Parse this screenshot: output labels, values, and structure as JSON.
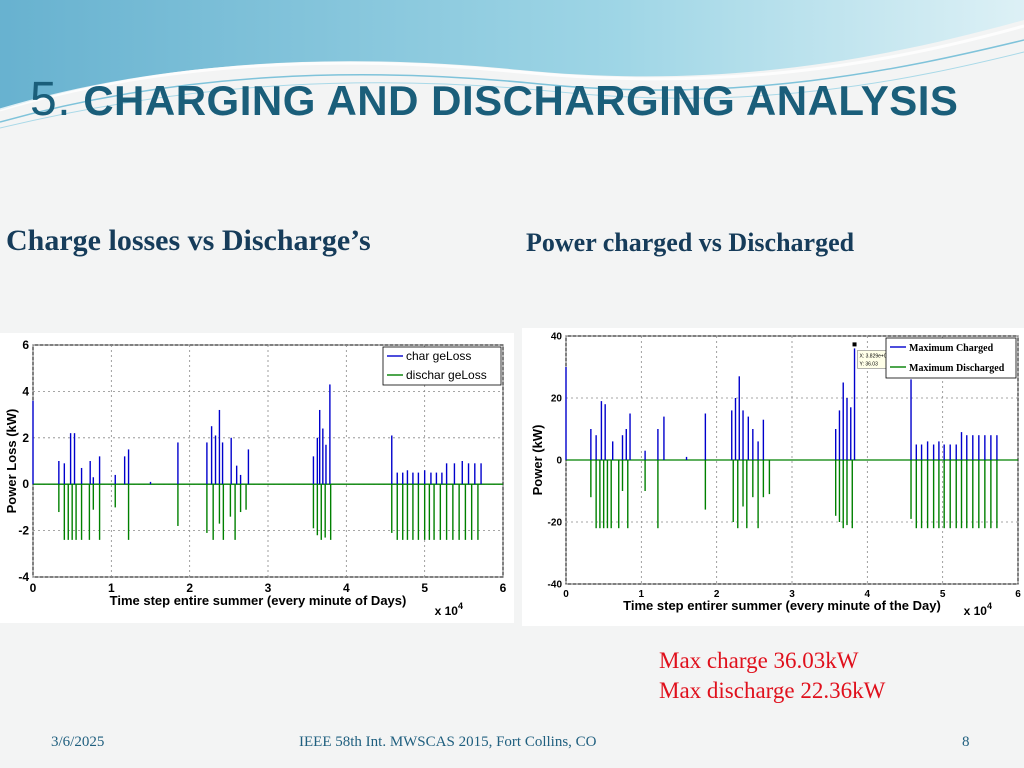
{
  "slide": {
    "title_number": "5.",
    "title_text": "CHARGING AND DISCHARGING ANALYSIS",
    "subtitle_left": "Charge losses vs Discharge’s",
    "subtitle_right": "Power charged vs Discharged",
    "notes": [
      "Max charge 36.03kW",
      "Max discharge 22.36kW"
    ],
    "footer": {
      "date": "3/6/2025",
      "conference": "IEEE 58th Int. MWSCAS 2015, Fort Collins, CO",
      "page": "8"
    }
  },
  "colors": {
    "title": "#1a5e7a",
    "subtitle": "#163c5a",
    "note": "#e0101c",
    "footer": "#1f5f7f",
    "charge_series": "#0000cc",
    "discharge_series": "#008000"
  },
  "chart_data": [
    {
      "type": "bar",
      "xlabel": "Time step entire summer (every minute of Days)",
      "ylabel": "Power Loss (kW)",
      "x_multiplier": "x 10^4",
      "xlim": [
        0,
        6
      ],
      "ylim": [
        -4,
        6
      ],
      "xticks": [
        0,
        1,
        2,
        3,
        4,
        5,
        6
      ],
      "yticks": [
        -4,
        -2,
        0,
        2,
        4,
        6
      ],
      "grid": true,
      "legend": "top-right",
      "series": [
        {
          "name": "char geLoss",
          "x": [
            0.0,
            0.33,
            0.4,
            0.48,
            0.53,
            0.62,
            0.73,
            0.77,
            0.85,
            1.05,
            1.17,
            1.22,
            1.5,
            1.85,
            2.22,
            2.28,
            2.33,
            2.38,
            2.42,
            2.53,
            2.6,
            2.65,
            2.75,
            3.58,
            3.63,
            3.66,
            3.7,
            3.74,
            3.79,
            4.58,
            4.65,
            4.72,
            4.78,
            4.85,
            4.92,
            5.0,
            5.08,
            5.15,
            5.22,
            5.28,
            5.38,
            5.48,
            5.56,
            5.64,
            5.72
          ],
          "values": [
            3.6,
            1.0,
            0.9,
            2.2,
            2.2,
            0.7,
            1.0,
            0.3,
            1.2,
            0.4,
            1.2,
            1.5,
            0.1,
            1.8,
            1.8,
            2.5,
            2.1,
            3.2,
            1.8,
            2.0,
            0.8,
            0.4,
            1.5,
            1.2,
            2.0,
            3.2,
            2.4,
            1.7,
            4.3,
            2.1,
            0.5,
            0.5,
            0.6,
            0.5,
            0.5,
            0.6,
            0.5,
            0.5,
            0.5,
            0.9,
            0.9,
            1.0,
            0.9,
            0.9,
            0.9
          ]
        },
        {
          "name": "dischar geLoss",
          "x": [
            0.33,
            0.4,
            0.45,
            0.5,
            0.55,
            0.62,
            0.72,
            0.77,
            0.85,
            1.05,
            1.22,
            1.85,
            2.22,
            2.3,
            2.38,
            2.43,
            2.52,
            2.58,
            2.65,
            2.72,
            3.58,
            3.63,
            3.68,
            3.73,
            3.8,
            4.58,
            4.65,
            4.72,
            4.78,
            4.85,
            4.92,
            5.0,
            5.06,
            5.12,
            5.2,
            5.28,
            5.36,
            5.44,
            5.52,
            5.6,
            5.68
          ],
          "values": [
            -1.2,
            -2.4,
            -2.4,
            -2.4,
            -2.4,
            -2.4,
            -2.4,
            -1.1,
            -2.4,
            -1.0,
            -2.4,
            -1.8,
            -2.1,
            -2.4,
            -1.7,
            -2.4,
            -1.4,
            -2.4,
            -1.2,
            -1.1,
            -1.9,
            -2.2,
            -2.4,
            -2.3,
            -2.4,
            -2.1,
            -2.4,
            -2.4,
            -2.4,
            -2.4,
            -2.4,
            -2.4,
            -2.4,
            -2.4,
            -2.4,
            -2.4,
            -2.4,
            -2.4,
            -2.4,
            -2.4,
            -2.4
          ]
        }
      ]
    },
    {
      "type": "bar",
      "xlabel": "Time step entirer summer (every minute of the Day)",
      "ylabel": "Power (kW)",
      "x_multiplier": "x 10^4",
      "xlim": [
        0,
        6
      ],
      "ylim": [
        -40,
        40
      ],
      "xticks": [
        0,
        1,
        2,
        3,
        4,
        5,
        6
      ],
      "yticks": [
        -40,
        -20,
        0,
        20,
        40
      ],
      "grid": true,
      "legend": "top-right",
      "datatip": [
        "X: 3.829e+004",
        "Y: 36.03"
      ],
      "series": [
        {
          "name": "Maximum Charged",
          "x": [
            0.0,
            0.33,
            0.4,
            0.47,
            0.52,
            0.62,
            0.75,
            0.8,
            0.85,
            1.05,
            1.22,
            1.3,
            1.6,
            1.85,
            2.2,
            2.25,
            2.3,
            2.35,
            2.42,
            2.48,
            2.55,
            2.62,
            3.58,
            3.63,
            3.68,
            3.73,
            3.78,
            3.83,
            4.58,
            4.65,
            4.72,
            4.8,
            4.88,
            4.95,
            5.02,
            5.1,
            5.18,
            5.25,
            5.32,
            5.4,
            5.48,
            5.56,
            5.64,
            5.72
          ],
          "values": [
            30,
            10,
            8,
            19,
            18,
            6,
            8,
            10,
            15,
            3,
            10,
            14,
            1,
            15,
            16,
            20,
            27,
            16,
            14,
            10,
            6,
            13,
            10,
            16,
            25,
            20,
            17,
            36,
            26,
            5,
            5,
            6,
            5,
            6,
            5,
            5,
            5,
            9,
            8,
            8,
            8,
            8,
            8,
            8
          ]
        },
        {
          "name": "Maximum Discharged",
          "x": [
            0.33,
            0.4,
            0.45,
            0.5,
            0.55,
            0.6,
            0.7,
            0.75,
            0.82,
            1.05,
            1.22,
            1.85,
            2.22,
            2.28,
            2.35,
            2.4,
            2.48,
            2.55,
            2.62,
            2.7,
            3.58,
            3.63,
            3.68,
            3.73,
            3.8,
            4.58,
            4.65,
            4.72,
            4.8,
            4.88,
            4.95,
            5.02,
            5.1,
            5.18,
            5.25,
            5.32,
            5.4,
            5.48,
            5.56,
            5.64,
            5.72
          ],
          "values": [
            -12,
            -22,
            -22,
            -22,
            -22,
            -22,
            -22,
            -10,
            -22,
            -10,
            -22,
            -16,
            -20,
            -22,
            -15,
            -22,
            -12,
            -22,
            -12,
            -11,
            -18,
            -20,
            -22,
            -21,
            -22,
            -19,
            -22,
            -22,
            -22,
            -22,
            -22,
            -22,
            -22,
            -22,
            -22,
            -22,
            -22,
            -22,
            -22,
            -22,
            -22
          ]
        }
      ]
    }
  ]
}
